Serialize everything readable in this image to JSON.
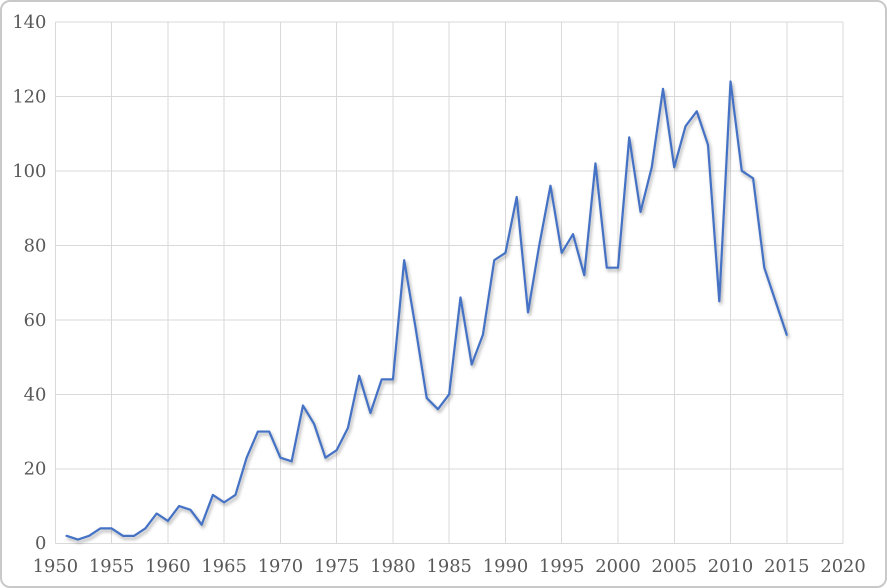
{
  "chart_data": {
    "type": "line",
    "title": "",
    "xlabel": "",
    "ylabel": "",
    "legend": "none",
    "grid": "both",
    "xlim": [
      1950,
      2020
    ],
    "ylim": [
      0,
      140
    ],
    "x_ticks": [
      1950,
      1955,
      1960,
      1965,
      1970,
      1975,
      1980,
      1985,
      1990,
      1995,
      2000,
      2005,
      2010,
      2015,
      2020
    ],
    "y_ticks": [
      0,
      20,
      40,
      60,
      80,
      100,
      120,
      140
    ],
    "x": [
      1951,
      1952,
      1953,
      1954,
      1955,
      1956,
      1957,
      1958,
      1959,
      1960,
      1961,
      1962,
      1963,
      1964,
      1965,
      1966,
      1967,
      1968,
      1969,
      1970,
      1971,
      1972,
      1973,
      1974,
      1975,
      1976,
      1977,
      1978,
      1979,
      1980,
      1981,
      1982,
      1983,
      1984,
      1985,
      1986,
      1987,
      1988,
      1989,
      1990,
      1991,
      1992,
      1993,
      1994,
      1995,
      1996,
      1997,
      1998,
      1999,
      2000,
      2001,
      2002,
      2003,
      2004,
      2005,
      2006,
      2007,
      2008,
      2009,
      2010,
      2011,
      2012,
      2013,
      2014,
      2015
    ],
    "values": [
      2,
      1,
      2,
      4,
      4,
      2,
      2,
      4,
      8,
      6,
      10,
      9,
      5,
      13,
      11,
      13,
      23,
      30,
      30,
      23,
      22,
      37,
      32,
      23,
      25,
      31,
      45,
      35,
      44,
      44,
      76,
      58,
      39,
      36,
      40,
      66,
      48,
      56,
      76,
      78,
      93,
      62,
      80,
      96,
      78,
      83,
      72,
      102,
      74,
      74,
      109,
      89,
      101,
      122,
      101,
      112,
      116,
      107,
      65,
      124,
      100,
      98,
      74,
      65,
      56
    ],
    "series_name": "",
    "series_color": "#4472C4",
    "gridline_color": "#D9D9D9",
    "tick_label_color": "#595959",
    "background_color": "#FFFFFF",
    "border_color": "#C9C9C9"
  }
}
